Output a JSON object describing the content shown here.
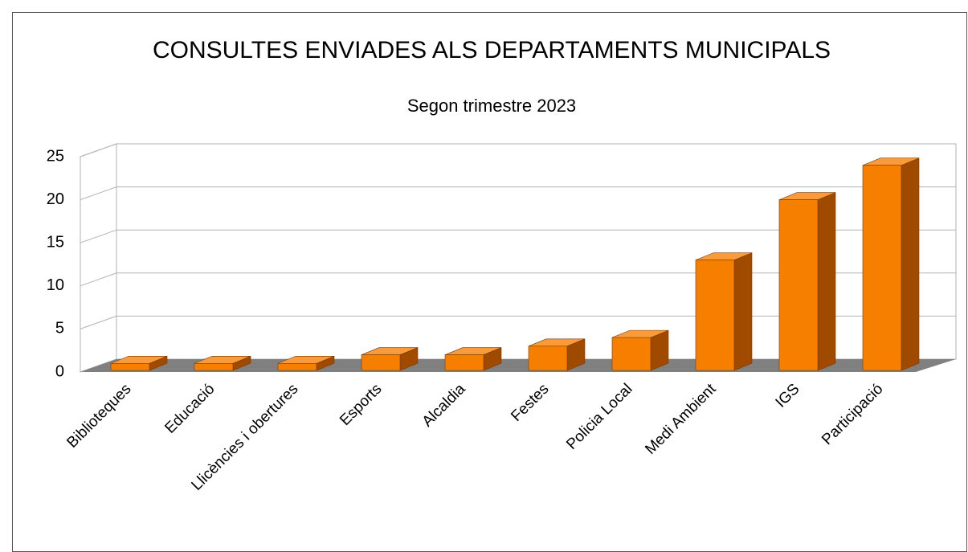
{
  "chart_data": {
    "type": "bar3d",
    "title": "CONSULTES ENVIADES ALS DEPARTAMENTS MUNICIPALS",
    "subtitle": "Segon trimestre 2023",
    "categories": [
      "Biblioteques",
      "Educació",
      "Llicències i obertures",
      "Esports",
      "Alcaldia",
      "Festes",
      "Policia Local",
      "Medi Ambient",
      "IGS",
      "Participació"
    ],
    "values": [
      1,
      1,
      1,
      2,
      2,
      3,
      4,
      13,
      20,
      24
    ],
    "color": "#f77f00",
    "ylim": [
      0,
      25
    ],
    "yticks": [
      0,
      5,
      10,
      15,
      20,
      25
    ],
    "grid": true
  }
}
